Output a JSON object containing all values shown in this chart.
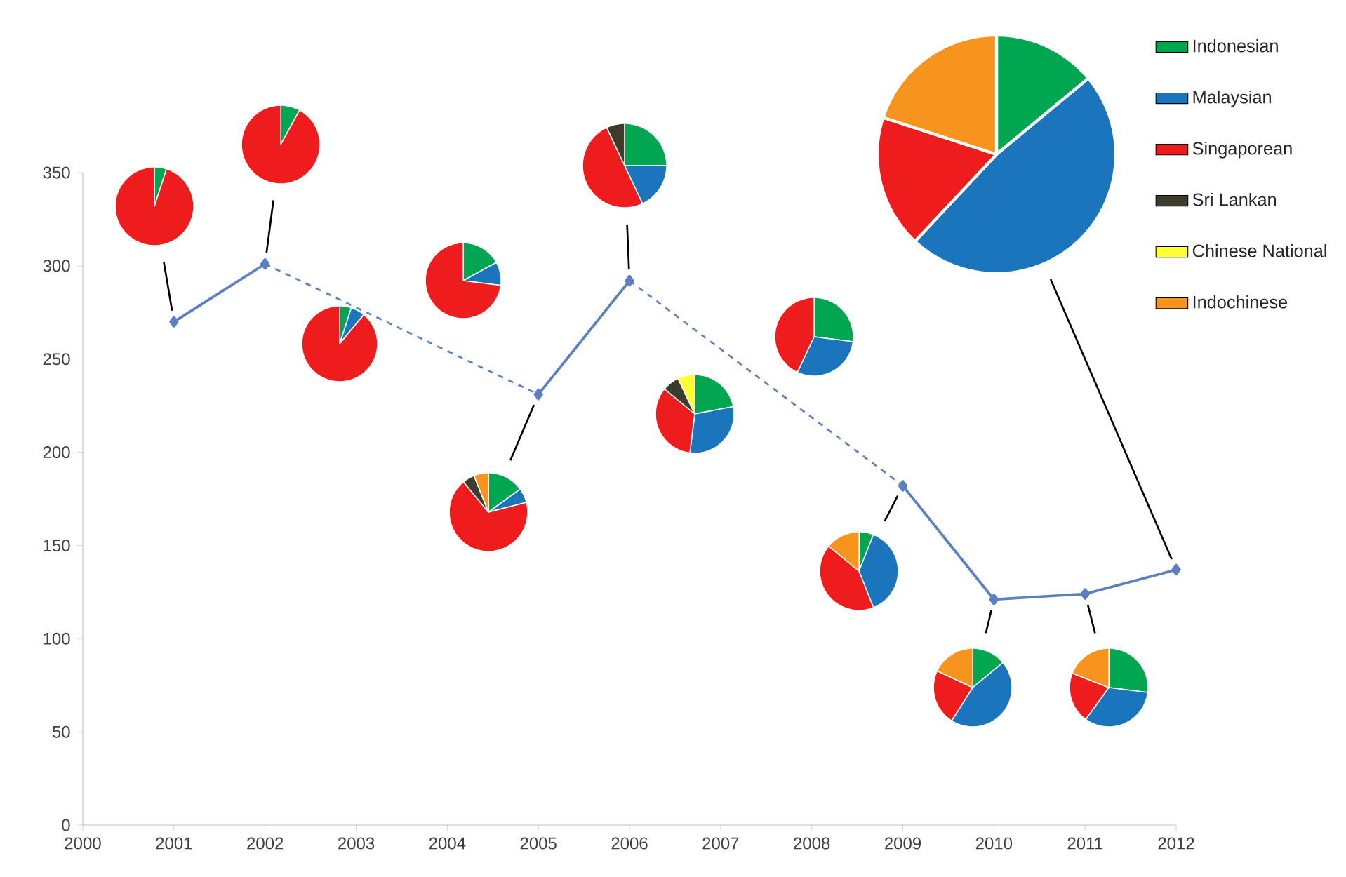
{
  "chart_data": [
    {
      "type": "line",
      "x": [
        2001,
        2002,
        2003,
        2004,
        2005,
        2006,
        2007,
        2008,
        2009,
        2010,
        2011,
        2012
      ],
      "values": [
        270,
        301,
        null,
        null,
        231,
        292,
        null,
        null,
        182,
        121,
        124,
        137
      ],
      "color": "#5b7fc0",
      "marker": "diamond",
      "xlim": [
        2000,
        2012
      ],
      "ylim": [
        0,
        350
      ],
      "xticks": [
        2000,
        2001,
        2002,
        2003,
        2004,
        2005,
        2006,
        2007,
        2008,
        2009,
        2010,
        2011,
        2012
      ],
      "yticks": [
        0,
        50,
        100,
        150,
        200,
        250,
        300,
        350
      ]
    },
    {
      "type": "pie",
      "categories": [
        null,
        null,
        null,
        null,
        null,
        null
      ],
      "values": [
        5,
        0,
        95,
        0,
        0,
        0
      ],
      "colors": [
        "#00a650",
        "#1b75bc",
        "#ee1c1c",
        "#3d3b2b",
        "#ffff33",
        "#f7941d"
      ]
    },
    {
      "type": "pie",
      "categories": [
        null,
        null,
        null,
        null,
        null,
        null
      ],
      "values": [
        8,
        0,
        92,
        0,
        0,
        0
      ],
      "colors": [
        "#00a650",
        "#1b75bc",
        "#ee1c1c",
        "#3d3b2b",
        "#ffff33",
        "#f7941d"
      ]
    },
    {
      "type": "pie",
      "categories": [
        null,
        null,
        null,
        null,
        null,
        null
      ],
      "values": [
        5,
        6,
        89,
        0,
        0,
        0
      ],
      "colors": [
        "#00a650",
        "#1b75bc",
        "#ee1c1c",
        "#3d3b2b",
        "#ffff33",
        "#f7941d"
      ]
    },
    {
      "type": "pie",
      "categories": [
        null,
        null,
        null,
        null,
        null,
        null
      ],
      "values": [
        17,
        10,
        73,
        0,
        0,
        0
      ],
      "colors": [
        "#00a650",
        "#1b75bc",
        "#ee1c1c",
        "#3d3b2b",
        "#ffff33",
        "#f7941d"
      ]
    },
    {
      "type": "pie",
      "categories": [
        null,
        null,
        null,
        null,
        null,
        null
      ],
      "values": [
        15,
        6,
        68,
        5,
        0,
        6
      ],
      "colors": [
        "#00a650",
        "#1b75bc",
        "#ee1c1c",
        "#3d3b2b",
        "#ffff33",
        "#f7941d"
      ]
    },
    {
      "type": "pie",
      "categories": [
        null,
        null,
        null,
        null,
        null,
        null
      ],
      "values": [
        25,
        18,
        50,
        7,
        0,
        0
      ],
      "colors": [
        "#00a650",
        "#1b75bc",
        "#ee1c1c",
        "#3d3b2b",
        "#ffff33",
        "#f7941d"
      ]
    },
    {
      "type": "pie",
      "categories": [
        null,
        null,
        null,
        null,
        null,
        null
      ],
      "values": [
        22,
        30,
        34,
        7,
        7,
        0
      ],
      "colors": [
        "#00a650",
        "#1b75bc",
        "#ee1c1c",
        "#3d3b2b",
        "#ffff33",
        "#f7941d"
      ]
    },
    {
      "type": "pie",
      "categories": [
        null,
        null,
        null,
        null,
        null,
        null
      ],
      "values": [
        27,
        30,
        43,
        0,
        0,
        0
      ],
      "colors": [
        "#00a650",
        "#1b75bc",
        "#ee1c1c",
        "#3d3b2b",
        "#ffff33",
        "#f7941d"
      ]
    },
    {
      "type": "pie",
      "categories": [
        null,
        null,
        null,
        null,
        null,
        null
      ],
      "values": [
        6,
        38,
        42,
        0,
        0,
        14
      ],
      "colors": [
        "#00a650",
        "#1b75bc",
        "#ee1c1c",
        "#3d3b2b",
        "#ffff33",
        "#f7941d"
      ]
    },
    {
      "type": "pie",
      "categories": [
        null,
        null,
        null,
        null,
        null,
        null
      ],
      "values": [
        14,
        45,
        23,
        0,
        0,
        18
      ],
      "colors": [
        "#00a650",
        "#1b75bc",
        "#ee1c1c",
        "#3d3b2b",
        "#ffff33",
        "#f7941d"
      ]
    },
    {
      "type": "pie",
      "categories": [
        null,
        null,
        null,
        null,
        null,
        null
      ],
      "values": [
        27,
        33,
        21,
        0,
        0,
        19
      ],
      "colors": [
        "#00a650",
        "#1b75bc",
        "#ee1c1c",
        "#3d3b2b",
        "#ffff33",
        "#f7941d"
      ]
    },
    {
      "type": "pie",
      "categories": [
        "Indonesian",
        "Malaysian",
        "Singaporean",
        "Sri Lankan",
        "Chinese National",
        "Indochinese"
      ],
      "values": [
        14,
        48,
        18,
        0,
        0,
        20
      ],
      "colors": [
        "#00a650",
        "#1b75bc",
        "#ee1c1c",
        "#3d3b2b",
        "#ffff33",
        "#f7941d"
      ],
      "legend": "right"
    }
  ]
}
